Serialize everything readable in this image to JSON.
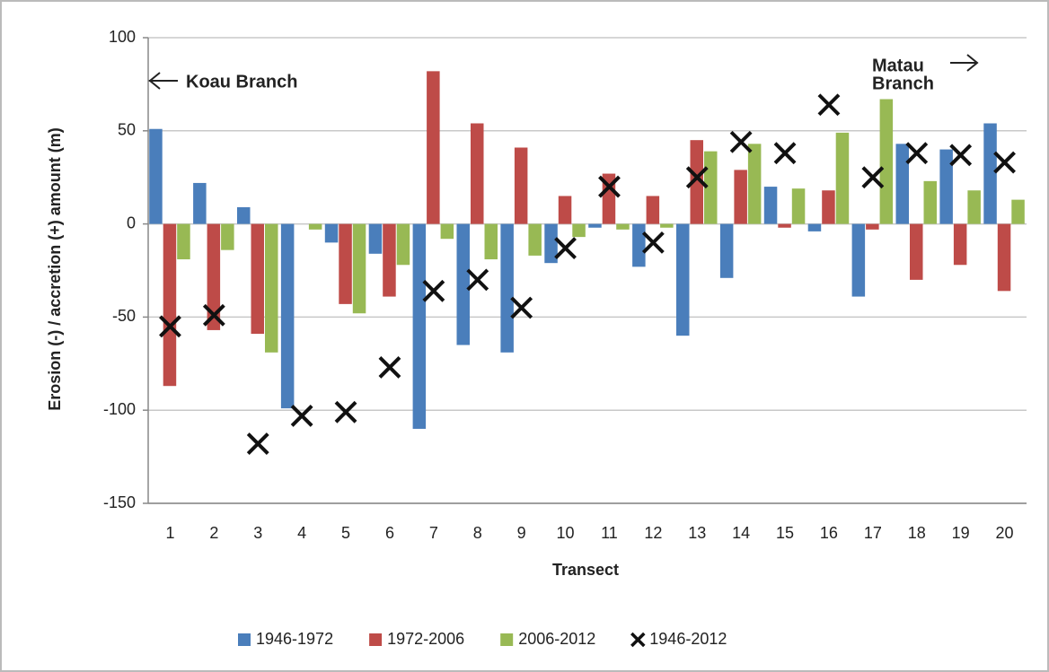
{
  "chart_data": {
    "type": "bar",
    "x_label": "Transect",
    "y_label": "Erosion (-) / accretion (+) amount (m)",
    "categories": [
      "1",
      "2",
      "3",
      "4",
      "5",
      "6",
      "7",
      "8",
      "9",
      "10",
      "11",
      "12",
      "13",
      "14",
      "15",
      "16",
      "17",
      "18",
      "19",
      "20"
    ],
    "series": [
      {
        "name": "1946-1972",
        "color": "#4a7ebb",
        "type": "bar",
        "values": [
          51,
          22,
          9,
          -99,
          -10,
          -16,
          -110,
          -65,
          -69,
          -21,
          -2,
          -23,
          -60,
          -29,
          20,
          -4,
          -39,
          43,
          40,
          54
        ]
      },
      {
        "name": "1972-2006",
        "color": "#be4b48",
        "type": "bar",
        "values": [
          -87,
          -57,
          -59,
          0,
          -43,
          -39,
          82,
          54,
          41,
          15,
          27,
          15,
          45,
          29,
          -2,
          18,
          -3,
          -30,
          -22,
          -36
        ]
      },
      {
        "name": "2006-2012",
        "color": "#98b954",
        "type": "bar",
        "values": [
          -19,
          -14,
          -69,
          -3,
          -48,
          -22,
          -8,
          -19,
          -17,
          -7,
          -3,
          -2,
          39,
          43,
          19,
          49,
          67,
          23,
          18,
          13
        ]
      },
      {
        "name": "1946-2012",
        "color": "#111111",
        "type": "scatter",
        "marker": "x",
        "values": [
          -55,
          -49,
          -118,
          -103,
          -101,
          -77,
          -36,
          -30,
          -45,
          -13,
          20,
          -10,
          25,
          44,
          38,
          64,
          25,
          38,
          37,
          33
        ]
      }
    ],
    "ylim": [
      -150,
      100
    ],
    "yticks": [
      -150,
      -100,
      -50,
      0,
      50,
      100
    ],
    "grid": true,
    "legend": "bottom",
    "annotations": [
      {
        "lines": [
          "Koau Branch"
        ]
      },
      {
        "lines": [
          "Matau",
          "Branch"
        ]
      }
    ]
  }
}
